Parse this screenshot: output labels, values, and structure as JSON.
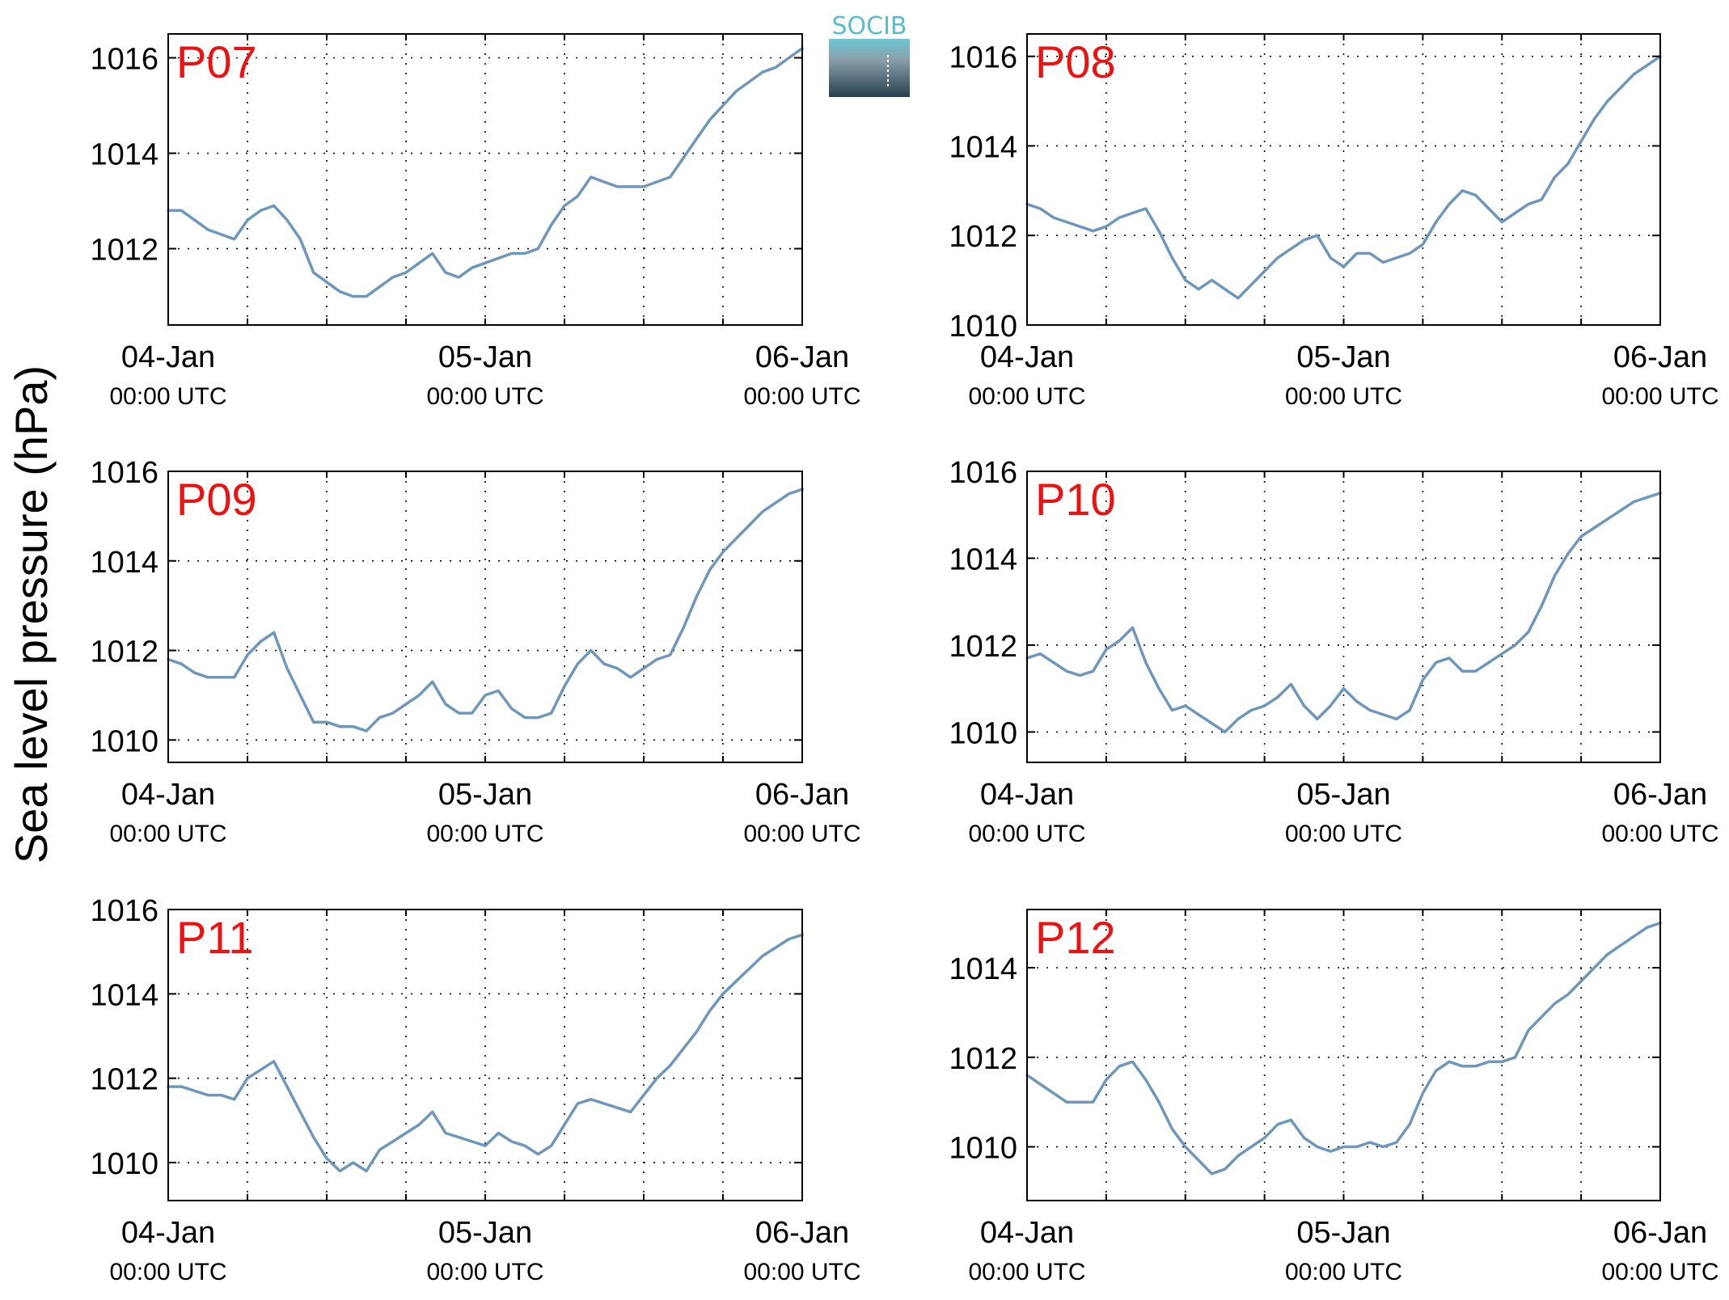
{
  "figure": {
    "ylabel": "Sea level pressure (hPa)",
    "logo_text": "SOCIB",
    "colors": {
      "line": "#6e97bb",
      "panel_label": "#ee1111",
      "grid": "#000000"
    }
  },
  "chart_data": [
    {
      "type": "line",
      "title": "P07",
      "x_ticks": [
        {
          "date": "04-Jan",
          "time": "00:00 UTC"
        },
        {
          "date": "05-Jan",
          "time": "00:00 UTC"
        },
        {
          "date": "06-Jan",
          "time": "00:00 UTC"
        }
      ],
      "xlim": [
        0,
        48
      ],
      "ylim": [
        1010.4,
        1016.5
      ],
      "yticks": [
        1012,
        1014,
        1016
      ],
      "grid": true,
      "series": [
        {
          "x": [
            0,
            1,
            2,
            3,
            4,
            5,
            6,
            7,
            8,
            9,
            10,
            11,
            12,
            13,
            14,
            15,
            16,
            17,
            18,
            19,
            20,
            21,
            22,
            23,
            24,
            25,
            26,
            27,
            28,
            29,
            30,
            31,
            32,
            33,
            34,
            35,
            36,
            37,
            38,
            39,
            40,
            41,
            42,
            43,
            44,
            45,
            46,
            47,
            48
          ],
          "values": [
            1012.8,
            1012.8,
            1012.6,
            1012.4,
            1012.3,
            1012.2,
            1012.6,
            1012.8,
            1012.9,
            1012.6,
            1012.2,
            1011.5,
            1011.3,
            1011.1,
            1011.0,
            1011.0,
            1011.2,
            1011.4,
            1011.5,
            1011.7,
            1011.9,
            1011.5,
            1011.4,
            1011.6,
            1011.7,
            1011.8,
            1011.9,
            1011.9,
            1012.0,
            1012.5,
            1012.9,
            1013.1,
            1013.5,
            1013.4,
            1013.3,
            1013.3,
            1013.3,
            1013.4,
            1013.5,
            1013.9,
            1014.3,
            1014.7,
            1015.0,
            1015.3,
            1015.5,
            1015.7,
            1015.8,
            1016.0,
            1016.2
          ]
        }
      ]
    },
    {
      "type": "line",
      "title": "P08",
      "x_ticks": [
        {
          "date": "04-Jan",
          "time": "00:00 UTC"
        },
        {
          "date": "05-Jan",
          "time": "00:00 UTC"
        },
        {
          "date": "06-Jan",
          "time": "00:00 UTC"
        }
      ],
      "xlim": [
        0,
        48
      ],
      "ylim": [
        1010,
        1016.5
      ],
      "yticks": [
        1010,
        1012,
        1014,
        1016
      ],
      "grid": true,
      "series": [
        {
          "x": [
            0,
            1,
            2,
            3,
            4,
            5,
            6,
            7,
            8,
            9,
            10,
            11,
            12,
            13,
            14,
            15,
            16,
            17,
            18,
            19,
            20,
            21,
            22,
            23,
            24,
            25,
            26,
            27,
            28,
            29,
            30,
            31,
            32,
            33,
            34,
            35,
            36,
            37,
            38,
            39,
            40,
            41,
            42,
            43,
            44,
            45,
            46,
            47,
            48
          ],
          "values": [
            1012.7,
            1012.6,
            1012.4,
            1012.3,
            1012.2,
            1012.1,
            1012.2,
            1012.4,
            1012.5,
            1012.6,
            1012.1,
            1011.5,
            1011.0,
            1010.8,
            1011.0,
            1010.8,
            1010.6,
            1010.9,
            1011.2,
            1011.5,
            1011.7,
            1011.9,
            1012.0,
            1011.5,
            1011.3,
            1011.6,
            1011.6,
            1011.4,
            1011.5,
            1011.6,
            1011.8,
            1012.3,
            1012.7,
            1013.0,
            1012.9,
            1012.6,
            1012.3,
            1012.5,
            1012.7,
            1012.8,
            1013.3,
            1013.6,
            1014.1,
            1014.6,
            1015.0,
            1015.3,
            1015.6,
            1015.8,
            1016.0
          ]
        }
      ]
    },
    {
      "type": "line",
      "title": "P09",
      "x_ticks": [
        {
          "date": "04-Jan",
          "time": "00:00 UTC"
        },
        {
          "date": "05-Jan",
          "time": "00:00 UTC"
        },
        {
          "date": "06-Jan",
          "time": "00:00 UTC"
        }
      ],
      "xlim": [
        0,
        48
      ],
      "ylim": [
        1009.5,
        1016
      ],
      "yticks": [
        1010,
        1012,
        1014,
        1016
      ],
      "grid": true,
      "series": [
        {
          "x": [
            0,
            1,
            2,
            3,
            4,
            5,
            6,
            7,
            8,
            9,
            10,
            11,
            12,
            13,
            14,
            15,
            16,
            17,
            18,
            19,
            20,
            21,
            22,
            23,
            24,
            25,
            26,
            27,
            28,
            29,
            30,
            31,
            32,
            33,
            34,
            35,
            36,
            37,
            38,
            39,
            40,
            41,
            42,
            43,
            44,
            45,
            46,
            47,
            48
          ],
          "values": [
            1011.8,
            1011.7,
            1011.5,
            1011.4,
            1011.4,
            1011.4,
            1011.9,
            1012.2,
            1012.4,
            1011.6,
            1011.0,
            1010.4,
            1010.4,
            1010.3,
            1010.3,
            1010.2,
            1010.5,
            1010.6,
            1010.8,
            1011.0,
            1011.3,
            1010.8,
            1010.6,
            1010.6,
            1011.0,
            1011.1,
            1010.7,
            1010.5,
            1010.5,
            1010.6,
            1011.2,
            1011.7,
            1012.0,
            1011.7,
            1011.6,
            1011.4,
            1011.6,
            1011.8,
            1011.9,
            1012.5,
            1013.2,
            1013.8,
            1014.2,
            1014.5,
            1014.8,
            1015.1,
            1015.3,
            1015.5,
            1015.6
          ]
        }
      ]
    },
    {
      "type": "line",
      "title": "P10",
      "x_ticks": [
        {
          "date": "04-Jan",
          "time": "00:00 UTC"
        },
        {
          "date": "05-Jan",
          "time": "00:00 UTC"
        },
        {
          "date": "06-Jan",
          "time": "00:00 UTC"
        }
      ],
      "xlim": [
        0,
        48
      ],
      "ylim": [
        1009.3,
        1016
      ],
      "yticks": [
        1010,
        1012,
        1014,
        1016
      ],
      "grid": true,
      "series": [
        {
          "x": [
            0,
            1,
            2,
            3,
            4,
            5,
            6,
            7,
            8,
            9,
            10,
            11,
            12,
            13,
            14,
            15,
            16,
            17,
            18,
            19,
            20,
            21,
            22,
            23,
            24,
            25,
            26,
            27,
            28,
            29,
            30,
            31,
            32,
            33,
            34,
            35,
            36,
            37,
            38,
            39,
            40,
            41,
            42,
            43,
            44,
            45,
            46,
            47,
            48
          ],
          "values": [
            1011.7,
            1011.8,
            1011.6,
            1011.4,
            1011.3,
            1011.4,
            1011.9,
            1012.1,
            1012.4,
            1011.6,
            1011.0,
            1010.5,
            1010.6,
            1010.4,
            1010.2,
            1010.0,
            1010.3,
            1010.5,
            1010.6,
            1010.8,
            1011.1,
            1010.6,
            1010.3,
            1010.6,
            1011.0,
            1010.7,
            1010.5,
            1010.4,
            1010.3,
            1010.5,
            1011.2,
            1011.6,
            1011.7,
            1011.4,
            1011.4,
            1011.6,
            1011.8,
            1012.0,
            1012.3,
            1012.9,
            1013.6,
            1014.1,
            1014.5,
            1014.7,
            1014.9,
            1015.1,
            1015.3,
            1015.4,
            1015.5
          ]
        }
      ]
    },
    {
      "type": "line",
      "title": "P11",
      "x_ticks": [
        {
          "date": "04-Jan",
          "time": "00:00 UTC"
        },
        {
          "date": "05-Jan",
          "time": "00:00 UTC"
        },
        {
          "date": "06-Jan",
          "time": "00:00 UTC"
        }
      ],
      "xlim": [
        0,
        48
      ],
      "ylim": [
        1009.1,
        1016
      ],
      "yticks": [
        1010,
        1012,
        1014,
        1016
      ],
      "grid": true,
      "series": [
        {
          "x": [
            0,
            1,
            2,
            3,
            4,
            5,
            6,
            7,
            8,
            9,
            10,
            11,
            12,
            13,
            14,
            15,
            16,
            17,
            18,
            19,
            20,
            21,
            22,
            23,
            24,
            25,
            26,
            27,
            28,
            29,
            30,
            31,
            32,
            33,
            34,
            35,
            36,
            37,
            38,
            39,
            40,
            41,
            42,
            43,
            44,
            45,
            46,
            47,
            48
          ],
          "values": [
            1011.8,
            1011.8,
            1011.7,
            1011.6,
            1011.6,
            1011.5,
            1012.0,
            1012.2,
            1012.4,
            1011.8,
            1011.2,
            1010.6,
            1010.1,
            1009.8,
            1010.0,
            1009.8,
            1010.3,
            1010.5,
            1010.7,
            1010.9,
            1011.2,
            1010.7,
            1010.6,
            1010.5,
            1010.4,
            1010.7,
            1010.5,
            1010.4,
            1010.2,
            1010.4,
            1010.9,
            1011.4,
            1011.5,
            1011.4,
            1011.3,
            1011.2,
            1011.6,
            1012.0,
            1012.3,
            1012.7,
            1013.1,
            1013.6,
            1014.0,
            1014.3,
            1014.6,
            1014.9,
            1015.1,
            1015.3,
            1015.4
          ]
        }
      ]
    },
    {
      "type": "line",
      "title": "P12",
      "x_ticks": [
        {
          "date": "04-Jan",
          "time": "00:00 UTC"
        },
        {
          "date": "05-Jan",
          "time": "00:00 UTC"
        },
        {
          "date": "06-Jan",
          "time": "00:00 UTC"
        }
      ],
      "xlim": [
        0,
        48
      ],
      "ylim": [
        1008.8,
        1015.3
      ],
      "yticks": [
        1010,
        1012,
        1014
      ],
      "grid": true,
      "series": [
        {
          "x": [
            0,
            1,
            2,
            3,
            4,
            5,
            6,
            7,
            8,
            9,
            10,
            11,
            12,
            13,
            14,
            15,
            16,
            17,
            18,
            19,
            20,
            21,
            22,
            23,
            24,
            25,
            26,
            27,
            28,
            29,
            30,
            31,
            32,
            33,
            34,
            35,
            36,
            37,
            38,
            39,
            40,
            41,
            42,
            43,
            44,
            45,
            46,
            47,
            48
          ],
          "values": [
            1011.6,
            1011.4,
            1011.2,
            1011.0,
            1011.0,
            1011.0,
            1011.5,
            1011.8,
            1011.9,
            1011.5,
            1011.0,
            1010.4,
            1010.0,
            1009.7,
            1009.4,
            1009.5,
            1009.8,
            1010.0,
            1010.2,
            1010.5,
            1010.6,
            1010.2,
            1010.0,
            1009.9,
            1010.0,
            1010.0,
            1010.1,
            1010.0,
            1010.1,
            1010.5,
            1011.2,
            1011.7,
            1011.9,
            1011.8,
            1011.8,
            1011.9,
            1011.9,
            1012.0,
            1012.6,
            1012.9,
            1013.2,
            1013.4,
            1013.7,
            1014.0,
            1014.3,
            1014.5,
            1014.7,
            1014.9,
            1015.0
          ]
        }
      ]
    }
  ]
}
